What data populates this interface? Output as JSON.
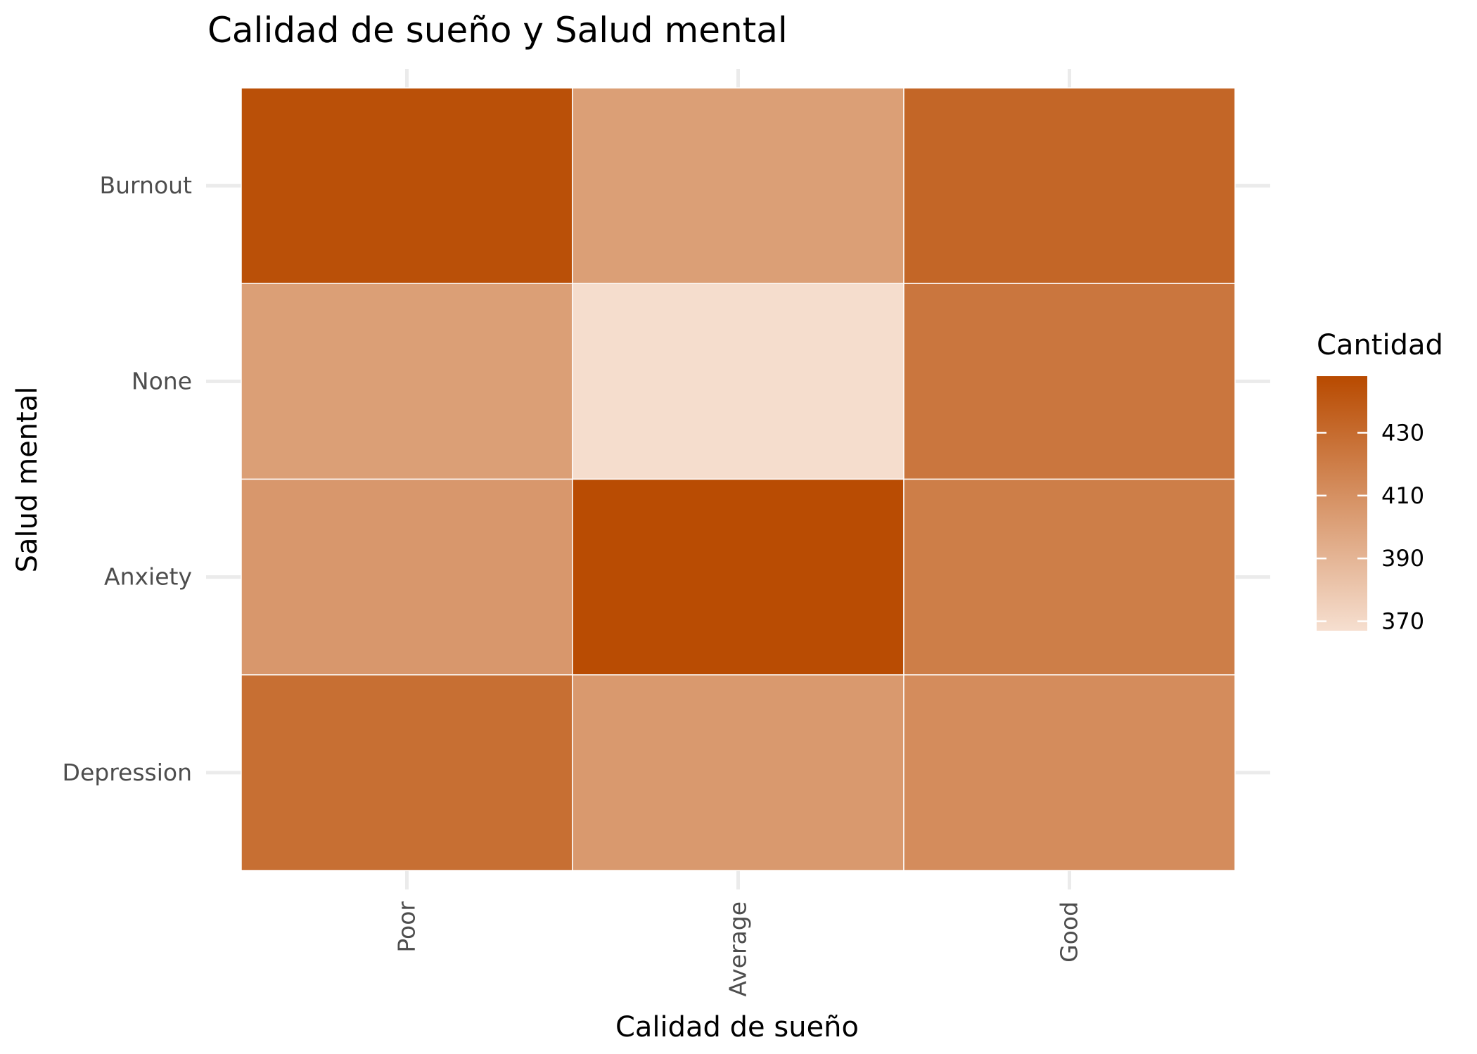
{
  "chart_data": {
    "type": "heatmap",
    "title": "Calidad de sueño y Salud mental",
    "xlabel": "Calidad de sueño",
    "ylabel": "Salud mental",
    "x_categories": [
      "Poor",
      "Average",
      "Good"
    ],
    "y_categories": [
      "Depression",
      "Anxiety",
      "None",
      "Burnout"
    ],
    "values": [
      {
        "x": "Poor",
        "y": "Burnout",
        "value": 445
      },
      {
        "x": "Average",
        "y": "Burnout",
        "value": 402
      },
      {
        "x": "Good",
        "y": "Burnout",
        "value": 433
      },
      {
        "x": "Poor",
        "y": "None",
        "value": 402
      },
      {
        "x": "Average",
        "y": "None",
        "value": 368
      },
      {
        "x": "Good",
        "y": "None",
        "value": 424
      },
      {
        "x": "Poor",
        "y": "Anxiety",
        "value": 406
      },
      {
        "x": "Average",
        "y": "Anxiety",
        "value": 447
      },
      {
        "x": "Good",
        "y": "Anxiety",
        "value": 420
      },
      {
        "x": "Poor",
        "y": "Depression",
        "value": 428
      },
      {
        "x": "Average",
        "y": "Depression",
        "value": 405
      },
      {
        "x": "Good",
        "y": "Depression",
        "value": 412
      }
    ],
    "legend": {
      "title": "Cantidad",
      "position": "right",
      "breaks": [
        370,
        390,
        410,
        430
      ],
      "range": [
        367,
        448
      ],
      "color_low": "#f6dfd0",
      "color_high": "#b84a00"
    },
    "grid": true
  }
}
